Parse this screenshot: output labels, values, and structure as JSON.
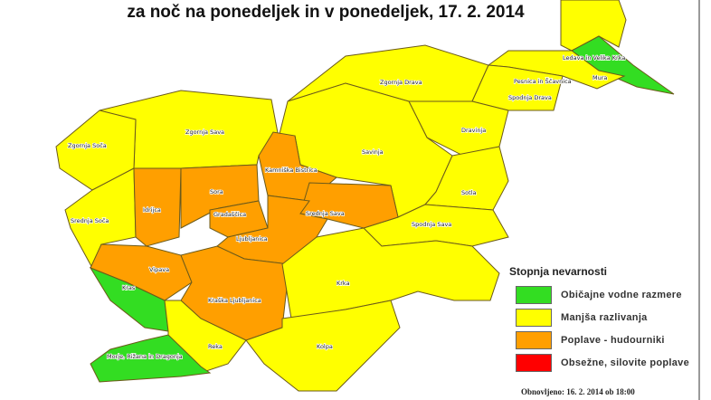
{
  "title": "za noč na ponedeljek in v ponedeljek, 17. 2. 2014",
  "colors": {
    "green": "#33dd22",
    "yellow": "#ffff00",
    "orange": "#ff9f00",
    "red": "#ff0000"
  },
  "regions": [
    {
      "name": "Ledava in Velika Krka",
      "level": "yellow"
    },
    {
      "name": "Mura",
      "level": "green"
    },
    {
      "name": "Pesnica in Ščavnica",
      "level": "yellow"
    },
    {
      "name": "Zgornja Drava",
      "level": "yellow"
    },
    {
      "name": "Spodnja Drava",
      "level": "yellow"
    },
    {
      "name": "Dravinja",
      "level": "yellow"
    },
    {
      "name": "Savinja",
      "level": "yellow"
    },
    {
      "name": "Sotla",
      "level": "yellow"
    },
    {
      "name": "Spodnja Sava",
      "level": "yellow"
    },
    {
      "name": "Zgornja Sava",
      "level": "yellow"
    },
    {
      "name": "Zgornja Soča",
      "level": "yellow"
    },
    {
      "name": "Srednja Soča",
      "level": "yellow"
    },
    {
      "name": "Idrijca",
      "level": "orange"
    },
    {
      "name": "Sora",
      "level": "orange"
    },
    {
      "name": "Kamniška Bistrica",
      "level": "orange"
    },
    {
      "name": "Srednja Sava",
      "level": "orange"
    },
    {
      "name": "Gradaščica",
      "level": "orange"
    },
    {
      "name": "Ljubljanica",
      "level": "orange"
    },
    {
      "name": "Vipava",
      "level": "orange"
    },
    {
      "name": "Kraška Ljubljanica",
      "level": "orange"
    },
    {
      "name": "Kras",
      "level": "green"
    },
    {
      "name": "Reka",
      "level": "yellow"
    },
    {
      "name": "Morje, Rižana in Dragonja",
      "level": "green"
    },
    {
      "name": "Krka",
      "level": "yellow"
    },
    {
      "name": "Kolpa",
      "level": "yellow"
    }
  ],
  "legend": {
    "title": "Stopnja nevarnosti",
    "items": [
      {
        "label": "Običajne vodne razmere",
        "color": "#33dd22"
      },
      {
        "label": "Manjša razlivanja",
        "color": "#ffff00"
      },
      {
        "label": "Poplave - hudourniki",
        "color": "#ff9f00"
      },
      {
        "label": "Obsežne, silovite poplave",
        "color": "#ff0000"
      }
    ]
  },
  "updated": "Obnovljeno: 16. 2. 2014 ob 18:00"
}
